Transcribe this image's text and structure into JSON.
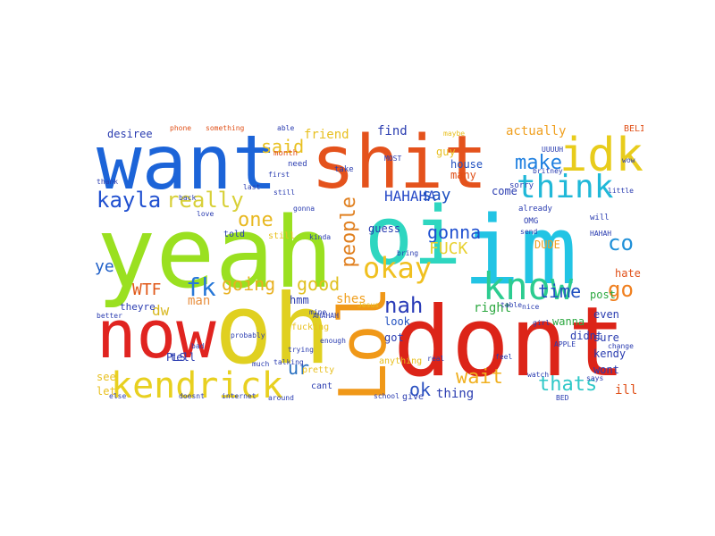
{
  "words": [
    {
      "text": "want",
      "color": "#1c64d8",
      "weight": 1.0
    },
    {
      "text": "shit",
      "color": "#e4521c",
      "weight": 1.0
    },
    {
      "text": "yeah",
      "color": "#9ae020",
      "weight": 1.0
    },
    {
      "text": "im",
      "color": "#22c4e4",
      "weight": 1.0
    },
    {
      "text": "oi",
      "color": "#2ed6c0",
      "weight": 0.95
    },
    {
      "text": "oh",
      "color": "#e0d020",
      "weight": 0.95
    },
    {
      "text": "now",
      "color": "#e02420",
      "weight": 0.9
    },
    {
      "text": "dont",
      "color": "#dc2418",
      "weight": 1.0
    },
    {
      "text": "idk",
      "color": "#e8cc1c",
      "weight": 0.7
    },
    {
      "text": "think",
      "color": "#20b8d8",
      "weight": 0.6
    },
    {
      "text": "know",
      "color": "#2ccc90",
      "weight": 0.7
    },
    {
      "text": "Lol",
      "color": "#f09818",
      "weight": 0.8
    },
    {
      "text": "kendrick",
      "color": "#e8d020",
      "weight": 0.6
    },
    {
      "text": "kayla",
      "color": "#2050d0",
      "weight": 0.4
    },
    {
      "text": "really",
      "color": "#d8d038",
      "weight": 0.4
    },
    {
      "text": "one",
      "color": "#e8b820",
      "weight": 0.35
    },
    {
      "text": "okay",
      "color": "#f0c020",
      "weight": 0.5
    },
    {
      "text": "people",
      "color": "#e08020",
      "weight": 0.4
    },
    {
      "text": "nah",
      "color": "#2a3cb8",
      "weight": 0.4
    },
    {
      "text": "make",
      "color": "#2080e0",
      "weight": 0.35
    },
    {
      "text": "gonna",
      "color": "#2050d0",
      "weight": 0.3
    },
    {
      "text": "FUCK",
      "color": "#e8d030",
      "weight": 0.3
    },
    {
      "text": "going",
      "color": "#e8b020",
      "weight": 0.3
    },
    {
      "text": "good",
      "color": "#e0c020",
      "weight": 0.3
    },
    {
      "text": "fk",
      "color": "#2878d8",
      "weight": 0.4
    },
    {
      "text": "WTF",
      "color": "#e05818",
      "weight": 0.3
    },
    {
      "text": "co",
      "color": "#2090d8",
      "weight": 0.35
    },
    {
      "text": "go",
      "color": "#f08020",
      "weight": 0.35
    },
    {
      "text": "said",
      "color": "#e8c020",
      "weight": 0.3
    },
    {
      "text": "HAHAHA",
      "color": "#2a4cc8",
      "weight": 0.25
    },
    {
      "text": "say",
      "color": "#1c50c0",
      "weight": 0.3
    },
    {
      "text": "time",
      "color": "#2050c0",
      "weight": 0.3
    },
    {
      "text": "thats",
      "color": "#30c8c8",
      "weight": 0.35
    },
    {
      "text": "wait",
      "color": "#f0b020",
      "weight": 0.35
    },
    {
      "text": "ok",
      "color": "#2a50c0",
      "weight": 0.3
    },
    {
      "text": "ye",
      "color": "#2060c8",
      "weight": 0.3
    },
    {
      "text": "ur",
      "color": "#2870c0",
      "weight": 0.3
    },
    {
      "text": "dw",
      "color": "#d8b820",
      "weight": 0.25
    },
    {
      "text": "man",
      "color": "#e89040",
      "weight": 0.2
    },
    {
      "text": "shes",
      "color": "#f0a020",
      "weight": 0.2
    },
    {
      "text": "right",
      "color": "#2ca840",
      "weight": 0.2
    },
    {
      "text": "friend",
      "color": "#e8c020",
      "weight": 0.2
    },
    {
      "text": "find",
      "color": "#2a3cb0",
      "weight": 0.2
    },
    {
      "text": "house",
      "color": "#2050c0",
      "weight": 0.18
    },
    {
      "text": "come",
      "color": "#2a3cb0",
      "weight": 0.18
    },
    {
      "text": "actually",
      "color": "#f0a020",
      "weight": 0.18
    },
    {
      "text": "desiree",
      "color": "#2a3cb0",
      "weight": 0.16
    },
    {
      "text": "guy",
      "color": "#e8c020",
      "weight": 0.16
    },
    {
      "text": "many",
      "color": "#e05018",
      "weight": 0.16
    },
    {
      "text": "guess",
      "color": "#2a3cb0",
      "weight": 0.16
    },
    {
      "text": "hmm",
      "color": "#2a3cb0",
      "weight": 0.16
    },
    {
      "text": "look",
      "color": "#2050c0",
      "weight": 0.16
    },
    {
      "text": "got",
      "color": "#2a3cb0",
      "weight": 0.16
    },
    {
      "text": "thing",
      "color": "#2a3cb0",
      "weight": 0.18
    },
    {
      "text": "DUDE",
      "color": "#f0a020",
      "weight": 0.16
    },
    {
      "text": "wanna",
      "color": "#2ca840",
      "weight": 0.16
    },
    {
      "text": "post",
      "color": "#2ca840",
      "weight": 0.16
    },
    {
      "text": "even",
      "color": "#2a3cb0",
      "weight": 0.16
    },
    {
      "text": "sure",
      "color": "#2a3cb0",
      "weight": 0.16
    },
    {
      "text": "kendy",
      "color": "#2a3cb0",
      "weight": 0.16
    },
    {
      "text": "wont",
      "color": "#2a3cb0",
      "weight": 0.14
    },
    {
      "text": "ill",
      "color": "#e05018",
      "weight": 0.16
    },
    {
      "text": "hate",
      "color": "#e05018",
      "weight": 0.14
    },
    {
      "text": "didnt",
      "color": "#2a3cb0",
      "weight": 0.14
    },
    {
      "text": "tell",
      "color": "#2a3cb0",
      "weight": 0.14
    },
    {
      "text": "PLS",
      "color": "#2a3cb0",
      "weight": 0.16
    },
    {
      "text": "see",
      "color": "#e8c020",
      "weight": 0.14
    },
    {
      "text": "let",
      "color": "#e8c020",
      "weight": 0.14
    },
    {
      "text": "theyre",
      "color": "#2a3cb0",
      "weight": 0.12
    },
    {
      "text": "fucking",
      "color": "#e8c020",
      "weight": 0.12
    },
    {
      "text": "pretty",
      "color": "#e8c020",
      "weight": 0.12
    },
    {
      "text": "cant",
      "color": "#2a3cb0",
      "weight": 0.12
    },
    {
      "text": "anything",
      "color": "#e8c020",
      "weight": 0.12
    },
    {
      "text": "give",
      "color": "#2a3cb0",
      "weight": 0.12
    },
    {
      "text": "still",
      "color": "#e8c020",
      "weight": 0.12
    },
    {
      "text": "told",
      "color": "#2a3cb0",
      "weight": 0.12
    },
    {
      "text": "BELINDA",
      "color": "#e05018",
      "weight": 0.12
    },
    {
      "text": "sorry",
      "color": "#2a3cb0",
      "weight": 0.1
    },
    {
      "text": "already",
      "color": "#2a3cb0",
      "weight": 0.1
    },
    {
      "text": "OMG",
      "color": "#2a3cb0",
      "weight": 0.1
    },
    {
      "text": "something",
      "color": "#e05018",
      "weight": 0.1
    },
    {
      "text": "phone",
      "color": "#e05018",
      "weight": 0.08
    },
    {
      "text": "need",
      "color": "#2a3cb0",
      "weight": 0.1
    },
    {
      "text": "month",
      "color": "#e05018",
      "weight": 0.1
    },
    {
      "text": "take",
      "color": "#2a3cb0",
      "weight": 0.1
    },
    {
      "text": "maybe",
      "color": "#e8c020",
      "weight": 0.08
    },
    {
      "text": "will",
      "color": "#2a3cb0",
      "weight": 0.1
    },
    {
      "text": "Jesus",
      "color": "#e8c020",
      "weight": 0.08
    },
    {
      "text": "table",
      "color": "#2a3cb0",
      "weight": 0.08
    },
    {
      "text": "nice",
      "color": "#2a3cb0",
      "weight": 0.08
    },
    {
      "text": "girl",
      "color": "#2a3cb0",
      "weight": 0.08
    },
    {
      "text": "school",
      "color": "#2a3cb0",
      "weight": 0.08
    },
    {
      "text": "much",
      "color": "#2a3cb0",
      "weight": 0.08
    },
    {
      "text": "talking",
      "color": "#2a3cb0",
      "weight": 0.08
    },
    {
      "text": "else",
      "color": "#2a3cb0",
      "weight": 0.08
    },
    {
      "text": "doesnt",
      "color": "#2a3cb0",
      "weight": 0.08
    },
    {
      "text": "internet",
      "color": "#2a3cb0",
      "weight": 0.08
    },
    {
      "text": "around",
      "color": "#2a3cb0",
      "weight": 0.08
    },
    {
      "text": "probably",
      "color": "#2a3cb0",
      "weight": 0.08
    },
    {
      "text": "watch",
      "color": "#2a3cb0",
      "weight": 0.08
    },
    {
      "text": "little",
      "color": "#2a3cb0",
      "weight": 0.08
    },
    {
      "text": "change",
      "color": "#2a3cb0",
      "weight": 0.08
    },
    {
      "text": "better",
      "color": "#2a3cb0",
      "weight": 0.08
    },
    {
      "text": "thank",
      "color": "#2a3cb0",
      "weight": 0.08
    },
    {
      "text": "mine",
      "color": "#2a3cb0",
      "weight": 0.08
    },
    {
      "text": "enough",
      "color": "#2a3cb0",
      "weight": 0.08
    },
    {
      "text": "trying",
      "color": "#2a3cb0",
      "weight": 0.08
    },
    {
      "text": "bring",
      "color": "#2a3cb0",
      "weight": 0.08
    },
    {
      "text": "send",
      "color": "#2a3cb0",
      "weight": 0.08
    },
    {
      "text": "says",
      "color": "#2a3cb0",
      "weight": 0.08
    },
    {
      "text": "bad",
      "color": "#2a3cb0",
      "weight": 0.08
    },
    {
      "text": "back",
      "color": "#2a3cb0",
      "weight": 0.08
    },
    {
      "text": "love",
      "color": "#2a3cb0",
      "weight": 0.08
    },
    {
      "text": "first",
      "color": "#2a3cb0",
      "weight": 0.08
    },
    {
      "text": "last",
      "color": "#2a3cb0",
      "weight": 0.08
    },
    {
      "text": "able",
      "color": "#2a3cb0",
      "weight": 0.08
    },
    {
      "text": "gonna",
      "color": "#2a3cb0",
      "weight": 0.08
    },
    {
      "text": "britney",
      "color": "#2a3cb0",
      "weight": 0.08
    },
    {
      "text": "UUUUH",
      "color": "#2a3cb0",
      "weight": 0.08
    },
    {
      "text": "HAHAH",
      "color": "#2a3cb0",
      "weight": 0.08
    },
    {
      "text": "AHAHAH",
      "color": "#2a3cb0",
      "weight": 0.08
    },
    {
      "text": "MOST",
      "color": "#2a3cb0",
      "weight": 0.08
    },
    {
      "text": "kinda",
      "color": "#2a3cb0",
      "weight": 0.08
    },
    {
      "text": "still",
      "color": "#2a3cb0",
      "weight": 0.08
    },
    {
      "text": "APPLE",
      "color": "#2a3cb0",
      "weight": 0.08
    },
    {
      "text": "BED",
      "color": "#2a3cb0",
      "weight": 0.08
    },
    {
      "text": "real",
      "color": "#2a3cb0",
      "weight": 0.08
    },
    {
      "text": "feel",
      "color": "#2a3cb0",
      "weight": 0.08
    },
    {
      "text": "wow",
      "color": "#2a3cb0",
      "weight": 0.08
    }
  ]
}
